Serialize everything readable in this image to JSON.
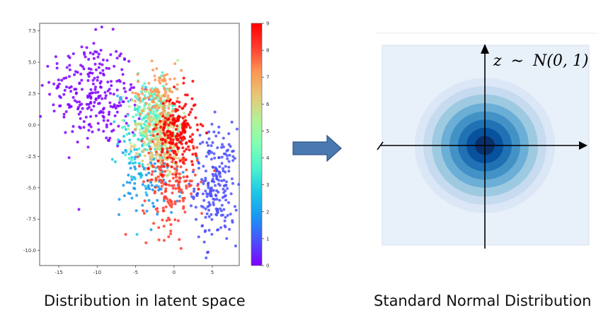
{
  "scatter": {
    "x_ticks": [
      "-15",
      "-10",
      "-5",
      "0",
      "5"
    ],
    "x_tick_values": [
      -15,
      -10,
      -5,
      0,
      5
    ],
    "y_ticks": [
      "7.5",
      "5.0",
      "2.5",
      "0.0",
      "-2.5",
      "-5.0",
      "-7.5",
      "-10.0"
    ],
    "y_tick_values": [
      7.5,
      5.0,
      2.5,
      0.0,
      -2.5,
      -5.0,
      -7.5,
      -10.0
    ],
    "xlim": [
      -17.5,
      8.5
    ],
    "ylim": [
      -11.2,
      8.1
    ],
    "colorbar_ticks": [
      "0",
      "1",
      "2",
      "3",
      "4",
      "5",
      "6",
      "7",
      "8",
      "9"
    ],
    "colormap": [
      "#8000ff",
      "#4c4ffc",
      "#1996f3",
      "#1ac7e6",
      "#4cf2cd",
      "#80ffb4",
      "#b2f296",
      "#e6c777",
      "#ff9655",
      "#ff3d2f",
      "#ff0000"
    ],
    "clusters": [
      {
        "label": 0,
        "cx": -10.5,
        "cy": 2.5,
        "sx": 3.0,
        "sy": 2.2,
        "n": 260,
        "tilt": -0.3
      },
      {
        "label": 1,
        "cx": 5.5,
        "cy": -4.8,
        "sx": 1.4,
        "sy": 2.3,
        "n": 220,
        "tilt": 0.0
      },
      {
        "label": 2,
        "cx": -3.0,
        "cy": -4.5,
        "sx": 2.0,
        "sy": 1.4,
        "n": 90,
        "tilt": 0.0
      },
      {
        "label": 3,
        "cx": -4.0,
        "cy": -1.0,
        "sx": 1.6,
        "sy": 2.0,
        "n": 90,
        "tilt": 0.0
      },
      {
        "label": 4,
        "cx": -3.0,
        "cy": 0.5,
        "sx": 1.6,
        "sy": 1.5,
        "n": 160,
        "tilt": 0.0
      },
      {
        "label": 5,
        "cx": -2.0,
        "cy": 0.0,
        "sx": 1.5,
        "sy": 1.5,
        "n": 160,
        "tilt": 0.0
      },
      {
        "label": 6,
        "cx": -1.5,
        "cy": -1.5,
        "sx": 1.5,
        "sy": 1.4,
        "n": 150,
        "tilt": 0.0
      },
      {
        "label": 7,
        "cx": -2.0,
        "cy": 2.5,
        "sx": 1.5,
        "sy": 1.2,
        "n": 110,
        "tilt": 0.0
      },
      {
        "label": 8,
        "cx": -0.5,
        "cy": -4.5,
        "sx": 1.8,
        "sy": 2.0,
        "n": 170,
        "tilt": 0.0
      },
      {
        "label": 9,
        "cx": 0.5,
        "cy": -0.5,
        "sx": 1.3,
        "sy": 1.6,
        "n": 200,
        "tilt": 0.0
      }
    ]
  },
  "normal": {
    "label": "z ~ N(0,1)",
    "label_prefix": "z",
    "label_op": "∼",
    "label_rest": "N(0, 1)",
    "contour_colors": [
      "#dbe7f6",
      "#c6dbef",
      "#9ecae1",
      "#6baed6",
      "#4292c6",
      "#2171b5",
      "#08519c",
      "#08306b"
    ],
    "background_color": "#e8f0fa"
  },
  "arrow": {
    "color": "#4a78b0",
    "edge_color": "#2e5686"
  },
  "captions": {
    "left": "Distribution in latent space",
    "right": "Standard Normal Distribution"
  }
}
